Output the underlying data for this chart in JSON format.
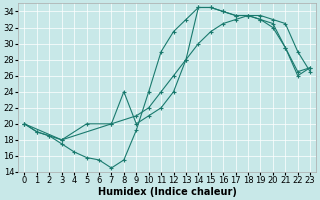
{
  "xlabel": "Humidex (Indice chaleur)",
  "bg_color": "#c8e8e8",
  "grid_color": "#ffffff",
  "line_color": "#1a7a6e",
  "xlim": [
    -0.5,
    23.5
  ],
  "ylim": [
    14,
    35
  ],
  "xticks": [
    0,
    1,
    2,
    3,
    4,
    5,
    6,
    7,
    8,
    9,
    10,
    11,
    12,
    13,
    14,
    15,
    16,
    17,
    18,
    19,
    20,
    21,
    22,
    23
  ],
  "yticks": [
    14,
    16,
    18,
    20,
    22,
    24,
    26,
    28,
    30,
    32,
    34
  ],
  "line1_x": [
    0,
    1,
    2,
    3,
    4,
    5,
    6,
    7,
    8,
    9,
    10,
    11,
    12,
    13,
    14,
    15,
    16,
    17,
    18,
    19,
    20,
    21,
    22,
    23
  ],
  "line1_y": [
    20,
    19,
    18.5,
    17.5,
    16.5,
    15.8,
    15.5,
    14.5,
    15.5,
    19.2,
    24.0,
    29.0,
    31.5,
    33.0,
    34.5,
    34.5,
    34.0,
    33.5,
    33.5,
    33.0,
    32.5,
    29.5,
    26.5,
    27.0
  ],
  "line2_x": [
    0,
    1,
    2,
    3,
    5,
    7,
    9,
    10,
    11,
    12,
    13,
    14,
    15,
    16,
    17,
    18,
    19,
    20,
    21,
    22,
    23
  ],
  "line2_y": [
    20,
    19,
    18.5,
    18.0,
    20.0,
    20.0,
    21.0,
    22.0,
    24.0,
    26.0,
    28.0,
    30.0,
    31.5,
    32.5,
    33.0,
    33.5,
    33.5,
    33.0,
    32.5,
    29.0,
    26.5
  ],
  "line3_x": [
    0,
    3,
    7,
    8,
    9,
    10,
    11,
    12,
    13,
    14,
    15,
    16,
    17,
    18,
    19,
    20,
    21,
    22,
    23
  ],
  "line3_y": [
    20,
    18.0,
    20.0,
    24.0,
    20.0,
    21.0,
    22.0,
    24.0,
    28.0,
    34.5,
    34.5,
    34.0,
    33.5,
    33.5,
    33.0,
    32.0,
    29.5,
    26.0,
    27.0
  ],
  "xlabel_fontsize": 7,
  "tick_fontsize": 6
}
